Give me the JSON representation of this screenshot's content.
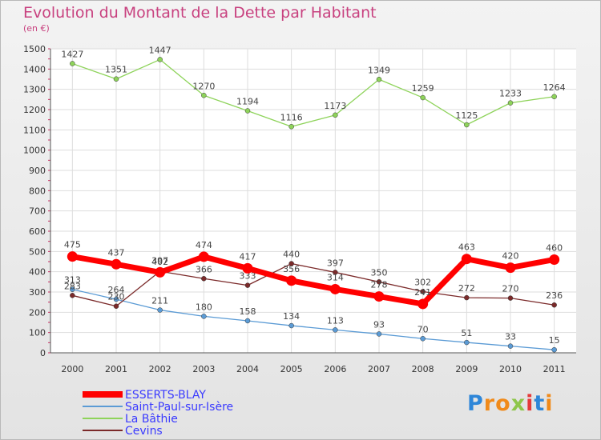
{
  "title": "Evolution du Montant de la Dette par Habitant",
  "subtitle": "(en €)",
  "logo": {
    "text": "Proxiti"
  },
  "colors": {
    "title": "#c8417f",
    "legend_text": "#3a3aff"
  },
  "chart_data": {
    "type": "line",
    "x": [
      "2000",
      "2001",
      "2002",
      "2003",
      "2004",
      "2005",
      "2006",
      "2007",
      "2008",
      "2009",
      "2010",
      "2011"
    ],
    "ylim": [
      0,
      1500
    ],
    "yticks": [
      0,
      100,
      200,
      300,
      400,
      500,
      600,
      700,
      800,
      900,
      1000,
      1100,
      1200,
      1300,
      1400,
      1500
    ],
    "grid": true,
    "legend_position": "bottom-left",
    "series": [
      {
        "name": "ESSERTS-BLAY",
        "color": "#ff0000",
        "values": [
          475,
          437,
          397,
          474,
          417,
          356,
          314,
          278,
          241,
          463,
          420,
          460
        ]
      },
      {
        "name": "Saint-Paul-sur-Isère",
        "color": "#5b9bd5",
        "values": [
          313,
          264,
          211,
          180,
          158,
          134,
          113,
          93,
          70,
          51,
          33,
          15
        ]
      },
      {
        "name": "La Bâthie",
        "color": "#8ed35a",
        "values": [
          1427,
          1351,
          1447,
          1270,
          1194,
          1116,
          1173,
          1349,
          1259,
          1125,
          1233,
          1264
        ]
      },
      {
        "name": "Cevins",
        "color": "#7b2a2a",
        "values": [
          283,
          230,
          402,
          366,
          333,
          440,
          397,
          350,
          302,
          272,
          270,
          236
        ]
      }
    ]
  }
}
